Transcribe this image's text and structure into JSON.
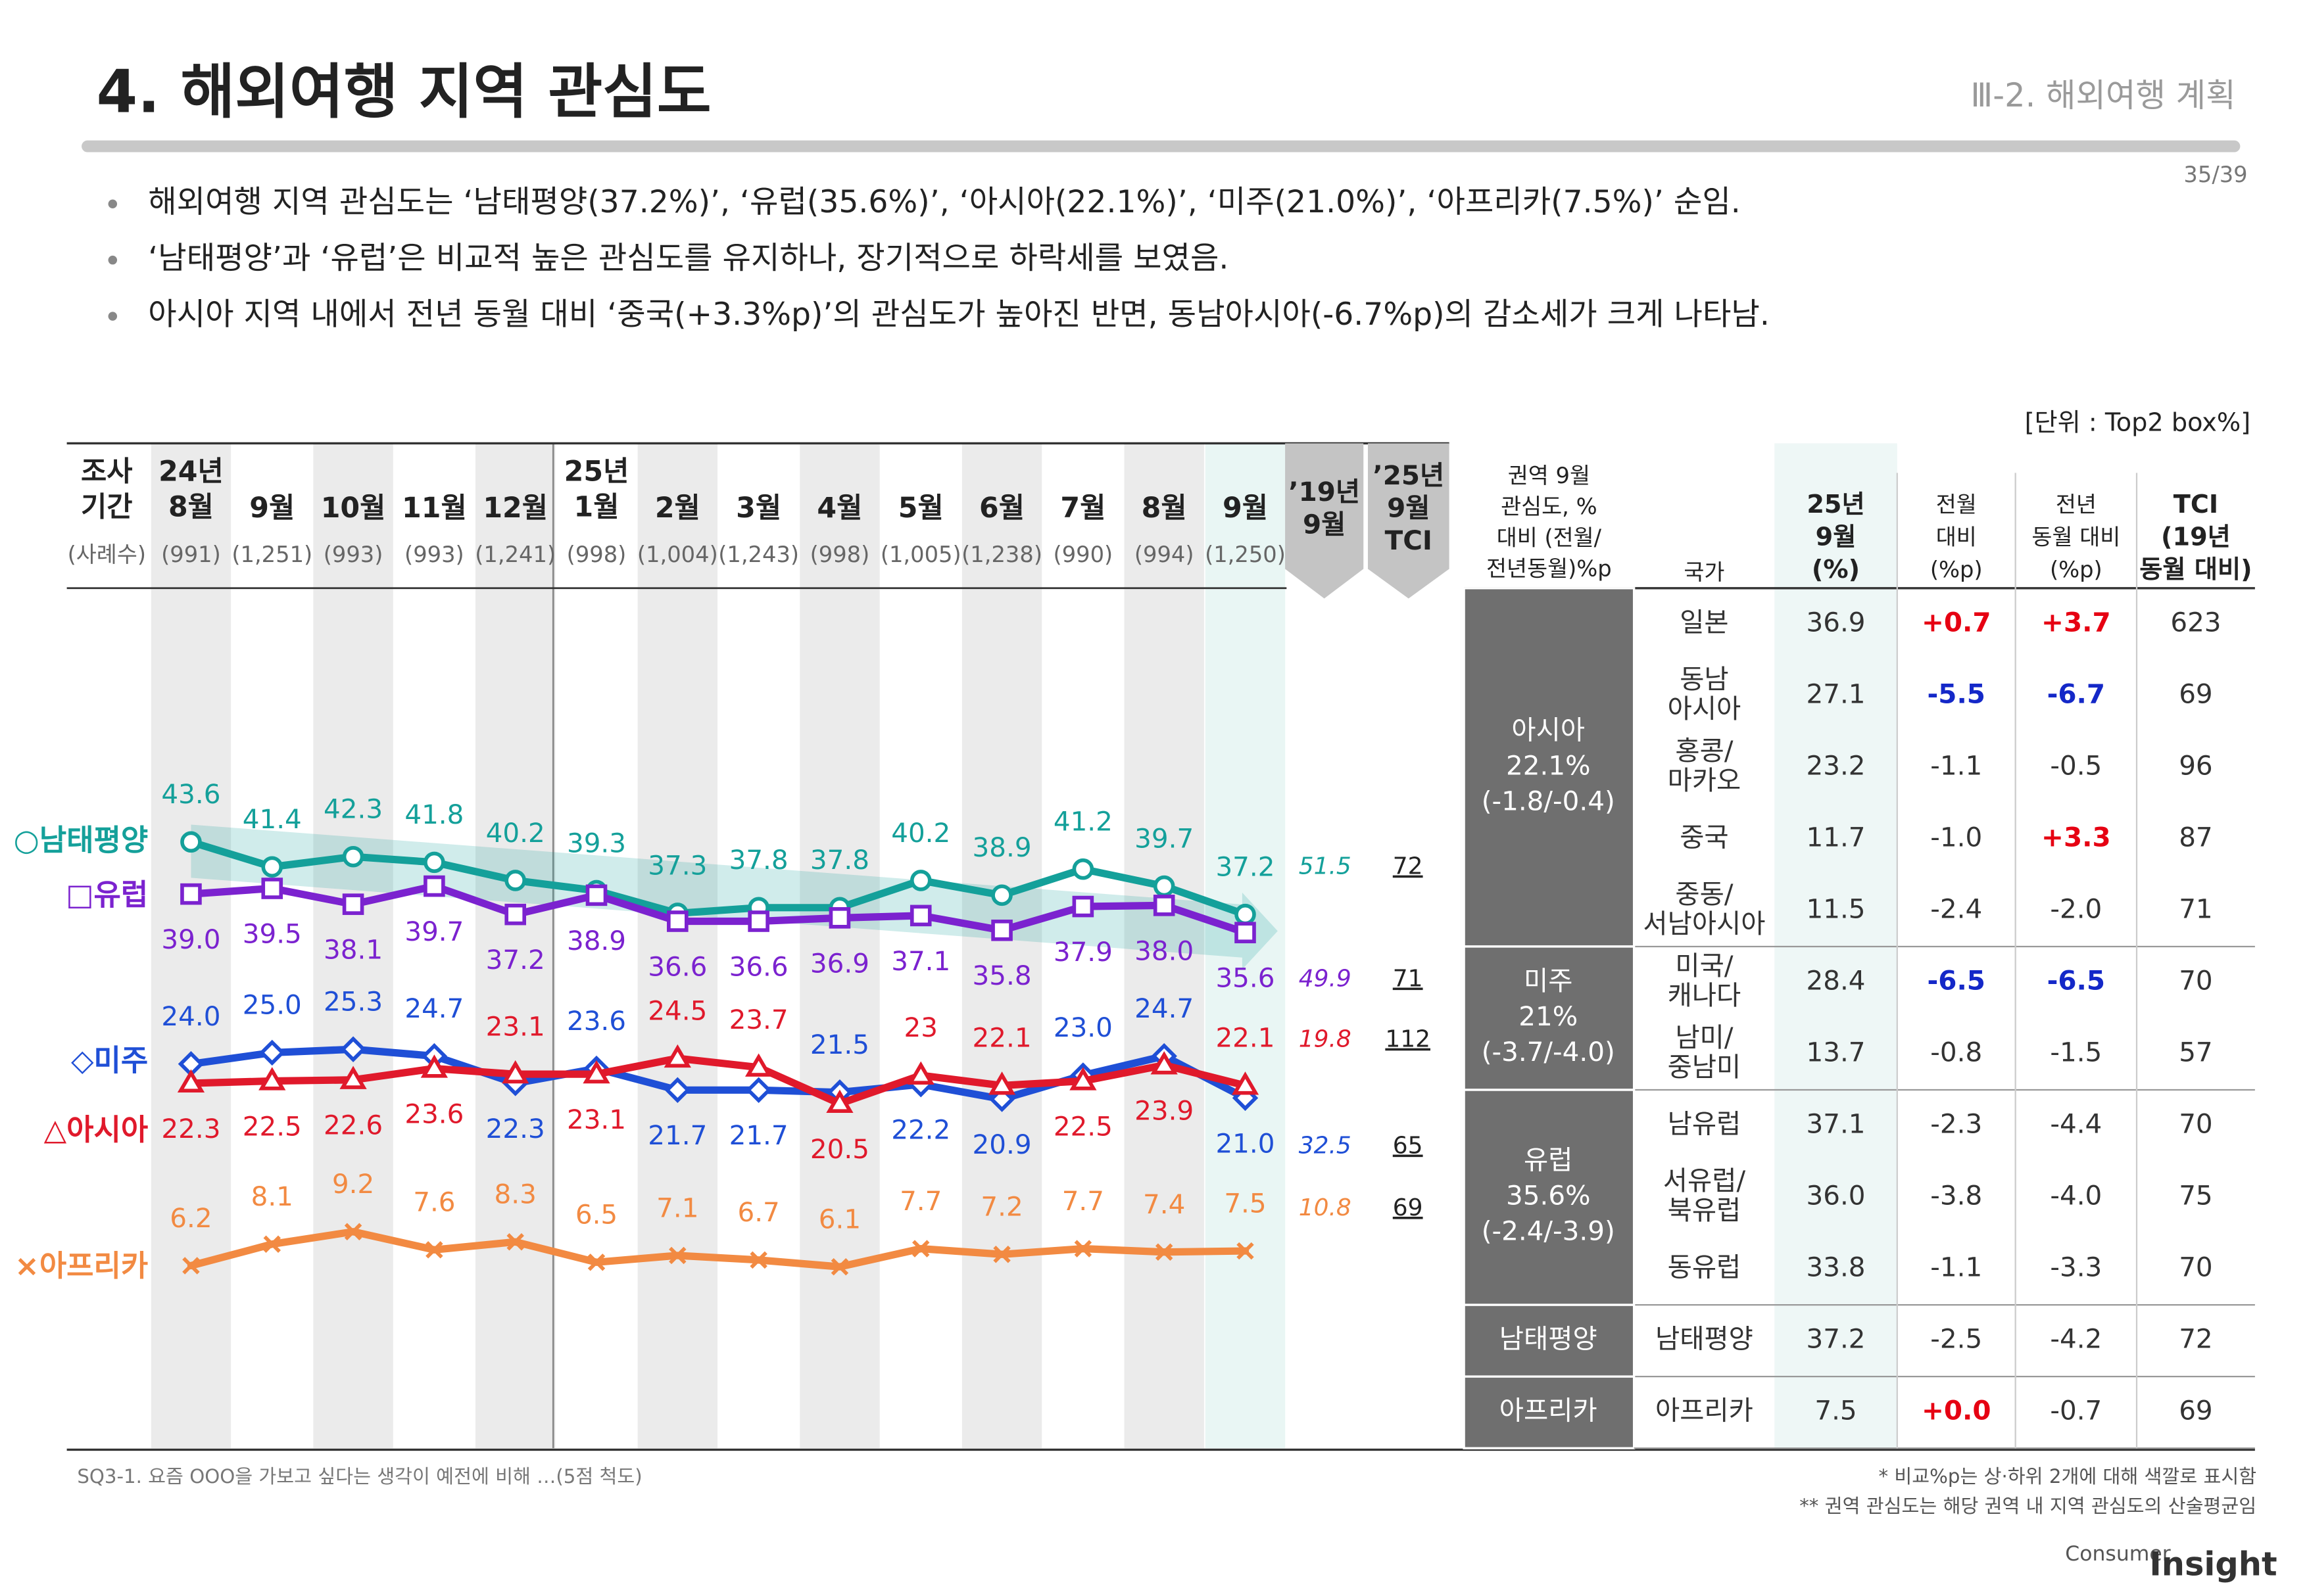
{
  "header": {
    "title": "4. 해외여행 지역 관심도",
    "section": "Ⅲ-2. 해외여행 계획",
    "page": "35/39",
    "bullets": [
      "해외여행 지역 관심도는 ‘남태평양(37.2%)’, ‘유럽(35.6%)’, ‘아시아(22.1%)’, ‘미주(21.0%)’, ‘아프리카(7.5%)’ 순임.",
      "‘남태평양’과 ‘유럽’은 비교적 높은 관심도를 유지하나, 장기적으로 하락세를 보였음.",
      "아시아 지역 내에서 전년 동월 대비 ‘중국(+3.3%p)’의 관심도가 높아진 반면, 동남아시아(-6.7%p)의 감소세가 크게 나타남."
    ],
    "unit": "[단위 : Top2 box%]"
  },
  "chart_data": {
    "type": "line",
    "row_labels": [
      "조사\n기간",
      "(사례수)"
    ],
    "categories": [
      "24년\n8월",
      "9월",
      "10월",
      "11월",
      "12월",
      "25년\n1월",
      "2월",
      "3월",
      "4월",
      "5월",
      "6월",
      "7월",
      "8월",
      "9월"
    ],
    "sample_sizes": [
      "(991)",
      "(1,251)",
      "(993)",
      "(993)",
      "(1,241)",
      "(998)",
      "(1,004)",
      "(1,243)",
      "(998)",
      "(1,005)",
      "(1,238)",
      "(990)",
      "(994)",
      "(1,250)"
    ],
    "comparison_labels": [
      "’19년\n9월",
      "’25년\n9월\nTCI"
    ],
    "ylim": [
      0,
      60
    ],
    "series": [
      {
        "name": "○남태평양",
        "color": "#14a09a",
        "marker": "circle",
        "values": [
          43.6,
          41.4,
          42.3,
          41.8,
          40.2,
          39.3,
          37.3,
          37.8,
          37.8,
          40.2,
          38.9,
          41.2,
          39.7,
          37.2
        ],
        "value_2019": 51.5,
        "tci": 72
      },
      {
        "name": "□유럽",
        "color": "#7b22cf",
        "marker": "square",
        "values": [
          39.0,
          39.5,
          38.1,
          39.7,
          37.2,
          38.9,
          36.6,
          36.6,
          36.9,
          37.1,
          35.8,
          37.9,
          38.0,
          35.6
        ],
        "value_labels": [
          "39.0",
          "39.5",
          "38.1",
          "39.7",
          "37.2",
          "38.9",
          "36.6",
          "36.6",
          "36.9",
          "37.1",
          "35.8",
          "37.9",
          "38.0",
          "35.6"
        ],
        "value_2019": 49.9,
        "tci": 71
      },
      {
        "name": "◇미주",
        "color": "#1f4fd6",
        "marker": "diamond",
        "values": [
          24.0,
          25.0,
          25.3,
          24.7,
          22.3,
          23.6,
          21.7,
          21.7,
          21.5,
          22.2,
          20.9,
          23.0,
          24.7,
          21.0
        ],
        "value_labels": [
          "24.0",
          "25.0",
          "25.3",
          "24.7",
          "22.3",
          "23.6",
          "21.7",
          "21.7",
          "21.5",
          "22.2",
          "20.9",
          "23.0",
          "24.7",
          "21.0"
        ],
        "value_2019": 32.5,
        "tci": 65
      },
      {
        "name": "△아시아",
        "color": "#e0192b",
        "marker": "triangle",
        "values": [
          22.3,
          22.5,
          22.6,
          23.6,
          23.1,
          23.1,
          24.5,
          23.7,
          20.5,
          23.0,
          22.1,
          22.5,
          23.9,
          22.1
        ],
        "value_2019": 19.8,
        "tci": 112
      },
      {
        "name": "×아프리카",
        "color": "#f28a42",
        "marker": "cross",
        "values": [
          6.2,
          8.1,
          9.2,
          7.6,
          8.3,
          6.5,
          7.1,
          6.7,
          6.1,
          7.7,
          7.2,
          7.7,
          7.4,
          7.5
        ],
        "value_2019": 10.8,
        "tci": 69
      }
    ]
  },
  "table": {
    "headers": [
      "권역 9월\n관심도, %\n대비 (전월/\n전년동월)%p",
      "국가",
      "25년\n9월\n(%)",
      "전월\n대비\n(%p)",
      "전년\n동월 대비\n(%p)",
      "TCI\n(19년\n동월 대비)"
    ],
    "groups": [
      {
        "name": "아시아\n22.1%\n(-1.8/-0.4)",
        "rows": [
          [
            "일본",
            "36.9",
            {
              "text": "+0.7",
              "color": "#e60012"
            },
            {
              "text": "+3.7",
              "color": "#e60012"
            },
            "623"
          ],
          [
            "동남\n아시아",
            "27.1",
            {
              "text": "-5.5",
              "color": "#1428c8"
            },
            {
              "text": "-6.7",
              "color": "#1428c8"
            },
            "69"
          ],
          [
            "홍콩/\n마카오",
            "23.2",
            "-1.1",
            "-0.5",
            "96"
          ],
          [
            "중국",
            "11.7",
            "-1.0",
            {
              "text": "+3.3",
              "color": "#e60012"
            },
            "87"
          ],
          [
            "중동/\n서남아시아",
            "11.5",
            "-2.4",
            "-2.0",
            "71"
          ]
        ]
      },
      {
        "name": "미주\n21%\n(-3.7/-4.0)",
        "rows": [
          [
            "미국/\n캐나다",
            "28.4",
            {
              "text": "-6.5",
              "color": "#1428c8"
            },
            {
              "text": "-6.5",
              "color": "#1428c8"
            },
            "70"
          ],
          [
            "남미/\n중남미",
            "13.7",
            "-0.8",
            "-1.5",
            "57"
          ]
        ]
      },
      {
        "name": "유럽\n35.6%\n(-2.4/-3.9)",
        "rows": [
          [
            "남유럽",
            "37.1",
            "-2.3",
            "-4.4",
            "70"
          ],
          [
            "서유럽/\n북유럽",
            "36.0",
            "-3.8",
            "-4.0",
            "75"
          ],
          [
            "동유럽",
            "33.8",
            "-1.1",
            "-3.3",
            "70"
          ]
        ]
      },
      {
        "name": "남태평양",
        "rows": [
          [
            "남태평양",
            "37.2",
            "-2.5",
            "-4.2",
            "72"
          ]
        ]
      },
      {
        "name": "아프리카",
        "rows": [
          [
            "아프리카",
            "7.5",
            {
              "text": "+0.0",
              "color": "#e60012"
            },
            "-0.7",
            "69"
          ]
        ]
      }
    ]
  },
  "footer": {
    "question": "SQ3-1. 요즘 OOO을 가보고 싶다는 생각이 예전에 비해 …(5점 척도)",
    "notes": [
      "* 비교%p는 상·하위 2개에 대해 색깔로 표시함",
      "** 권역 관심도는 해당 권역 내 지역 관심도의 산술평균임"
    ],
    "logo": [
      "Consumer",
      "Insight"
    ]
  }
}
